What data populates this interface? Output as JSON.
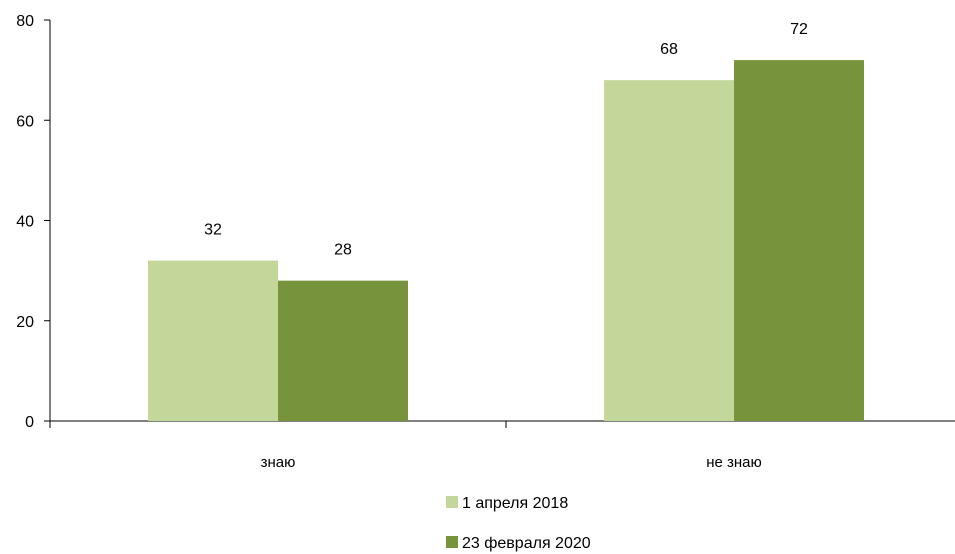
{
  "chart_data": {
    "type": "bar",
    "categories": [
      "знаю",
      "не знаю"
    ],
    "series": [
      {
        "name": "1 апреля 2018",
        "values": [
          32,
          68
        ],
        "color": "#c4d79b"
      },
      {
        "name": "23 февраля 2020",
        "values": [
          28,
          72
        ],
        "color": "#77933c"
      }
    ],
    "data_labels": [
      [
        "32",
        "68"
      ],
      [
        "28",
        "72"
      ]
    ],
    "title": "",
    "xlabel": "",
    "ylabel": "",
    "ylim": [
      0,
      80
    ],
    "yticks": [
      0,
      20,
      40,
      60,
      80
    ],
    "ytick_labels": [
      "0",
      "20",
      "40",
      "60",
      "80"
    ],
    "grid": false,
    "legend_position": "bottom-center"
  }
}
